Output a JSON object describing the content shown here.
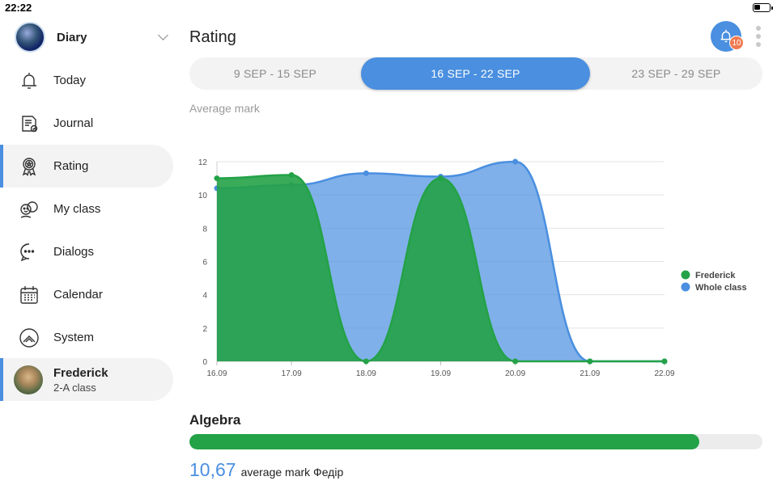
{
  "status_bar": {
    "time": "22:22"
  },
  "sidebar": {
    "profile": {
      "name": "Diary"
    },
    "items": [
      {
        "label": "Today",
        "icon": "bell-icon"
      },
      {
        "label": "Journal",
        "icon": "journal-icon"
      },
      {
        "label": "Rating",
        "icon": "award-icon",
        "active": true
      },
      {
        "label": "My class",
        "icon": "class-icon"
      },
      {
        "label": "Dialogs",
        "icon": "chat-icon"
      },
      {
        "label": "Calendar",
        "icon": "calendar-icon"
      },
      {
        "label": "System",
        "icon": "system-icon"
      }
    ],
    "user": {
      "name": "Frederick",
      "class": "2-A class"
    }
  },
  "header": {
    "title": "Rating",
    "notification_count": "10"
  },
  "weeks": [
    "9 SEP - 15 SEP",
    "16 SEP - 22 SEP",
    "23 SEP - 29 SEP"
  ],
  "selected_week": 1,
  "average_mark_label": "Average mark",
  "colors": {
    "accent": "#4a8fe0",
    "frederick": "#23a247",
    "whole_class": "#4a8fe0",
    "badge": "#f07a50"
  },
  "chart_data": {
    "type": "area",
    "categories": [
      "16.09",
      "17.09",
      "18.09",
      "19.09",
      "20.09",
      "21.09",
      "22.09"
    ],
    "series": [
      {
        "name": "Frederick",
        "values": [
          11,
          11.2,
          0,
          11,
          0,
          0,
          0
        ]
      },
      {
        "name": "Whole class",
        "values": [
          10.4,
          10.6,
          11.3,
          11.1,
          12,
          0,
          0
        ]
      }
    ],
    "ylim": [
      0,
      12
    ],
    "yticks": [
      "0",
      "2",
      "4",
      "6",
      "8",
      "10",
      "12"
    ],
    "grid": true,
    "legend": "right"
  },
  "subject": {
    "name": "Algebra",
    "progress": 0.89,
    "average": "10,67",
    "average_text": "average mark Федір"
  }
}
